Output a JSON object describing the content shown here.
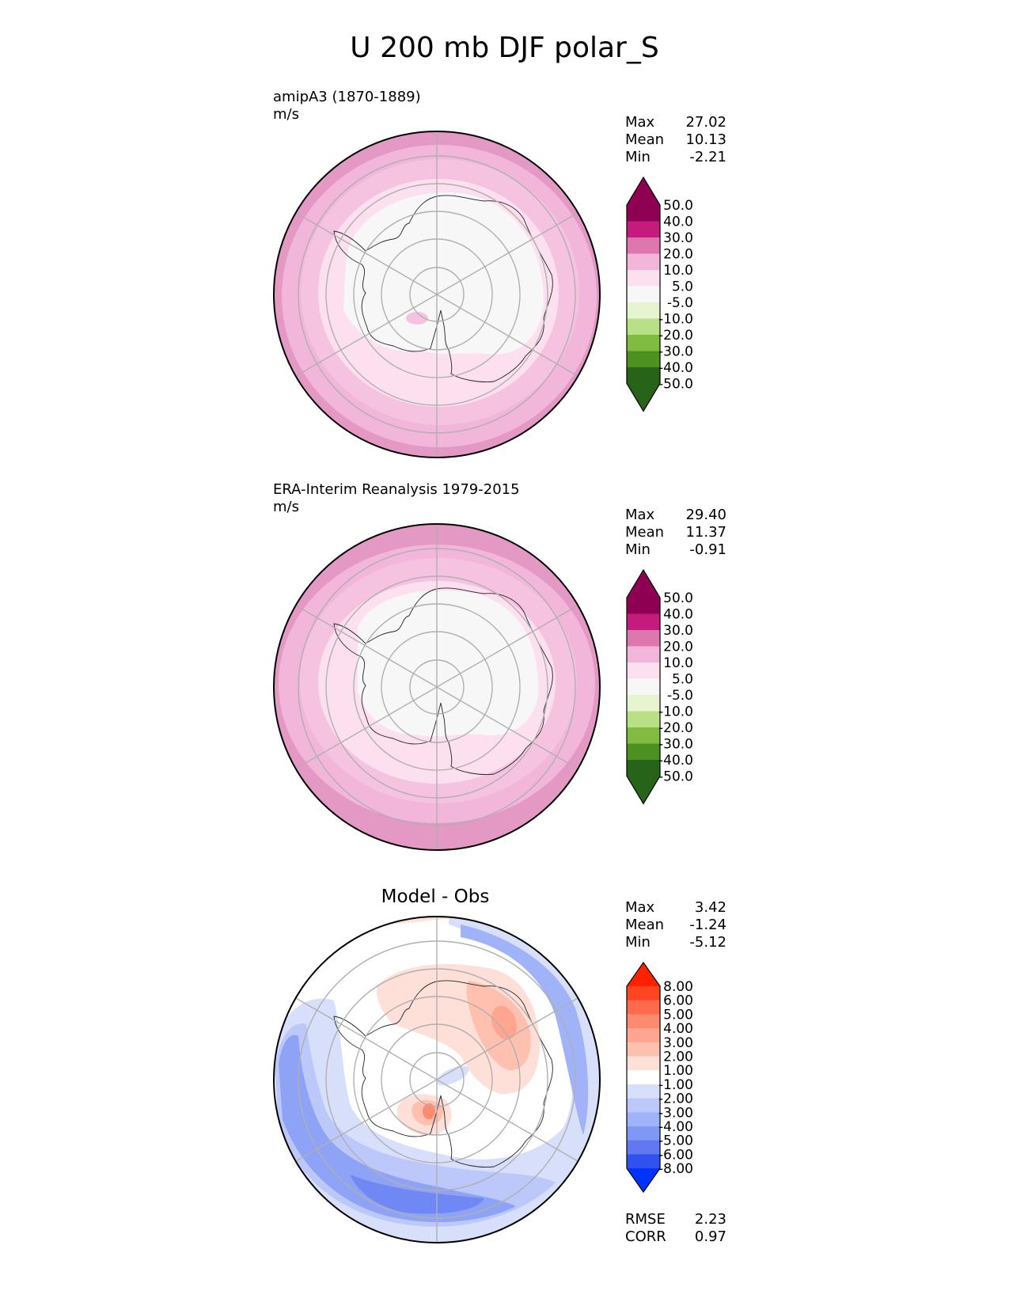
{
  "title": "U 200 mb DJF polar_S",
  "panels": [
    {
      "title_line1": "amipA3 (1870-1889)",
      "title_line2": "m/s",
      "stats": [
        {
          "label": "Max",
          "value": "27.02"
        },
        {
          "label": "Mean",
          "value": "10.13"
        },
        {
          "label": "Min",
          "value": "-2.21"
        }
      ]
    },
    {
      "title_line1": "ERA-Interim Reanalysis 1979-2015",
      "title_line2": "m/s",
      "stats": [
        {
          "label": "Max",
          "value": "29.40"
        },
        {
          "label": "Mean",
          "value": "11.37"
        },
        {
          "label": "Min",
          "value": "-0.91"
        }
      ]
    },
    {
      "title": "Model - Obs",
      "stats": [
        {
          "label": "Max",
          "value": "3.42"
        },
        {
          "label": "Mean",
          "value": "-1.24"
        },
        {
          "label": "Min",
          "value": "-5.12"
        }
      ],
      "metrics": [
        {
          "label": "RMSE",
          "value": "2.23"
        },
        {
          "label": "CORR",
          "value": "0.97"
        }
      ]
    }
  ],
  "chart_data": [
    {
      "type": "heatmap",
      "projection": "south-polar-stereographic",
      "title": "amipA3 (1870-1889)",
      "units": "m/s",
      "colorbar": {
        "levels": [
          "50.0",
          "40.0",
          "30.0",
          "20.0",
          "10.0",
          "5.0",
          "-5.0",
          "-10.0",
          "-20.0",
          "-30.0",
          "-40.0",
          "-50.0"
        ],
        "colors": [
          "#8e0152",
          "#c51b7d",
          "#de77ae",
          "#f1b6da",
          "#fde0ef",
          "#f7f7f7",
          "#e6f5d0",
          "#b8e186",
          "#7fbc41",
          "#4d9221",
          "#276419"
        ],
        "extend": "both",
        "over_color": "#8e0152",
        "under_color": "#276419"
      },
      "stats": {
        "max": 27.02,
        "mean": 10.13,
        "min": -2.21
      }
    },
    {
      "type": "heatmap",
      "projection": "south-polar-stereographic",
      "title": "ERA-Interim Reanalysis 1979-2015",
      "units": "m/s",
      "colorbar": {
        "levels": [
          "50.0",
          "40.0",
          "30.0",
          "20.0",
          "10.0",
          "5.0",
          "-5.0",
          "-10.0",
          "-20.0",
          "-30.0",
          "-40.0",
          "-50.0"
        ],
        "extend": "both"
      },
      "stats": {
        "max": 29.4,
        "mean": 11.37,
        "min": -0.91
      }
    },
    {
      "type": "heatmap",
      "projection": "south-polar-stereographic",
      "title": "Model - Obs",
      "colorbar": {
        "levels": [
          "8.00",
          "6.00",
          "5.00",
          "4.00",
          "3.00",
          "2.00",
          "1.00",
          "-1.00",
          "-2.00",
          "-3.00",
          "-4.00",
          "-5.00",
          "-6.00",
          "-8.00"
        ],
        "colors": [
          "#ff4422",
          "#ff6a4a",
          "#ff8a70",
          "#ffa590",
          "#ffc0b0",
          "#ffe0d8",
          "#ffffff",
          "#d8dffa",
          "#bcc8fa",
          "#a0b2f8",
          "#8098f5",
          "#6078f2",
          "#3050f0"
        ],
        "extend": "both",
        "over_color": "#ff2200",
        "under_color": "#0033ff"
      },
      "stats": {
        "max": 3.42,
        "mean": -1.24,
        "min": -5.12
      },
      "rmse": 2.23,
      "corr": 0.97
    }
  ]
}
